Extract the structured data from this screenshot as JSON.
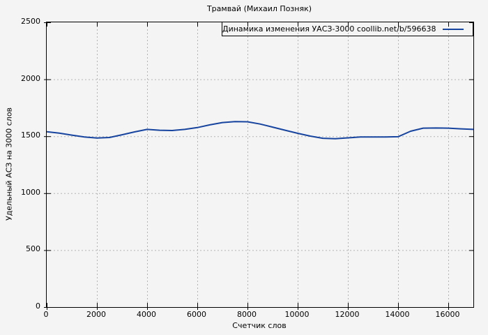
{
  "title": "Трамвай (Михаил Позняк)",
  "colors": {
    "background": "#f4f4f4",
    "line": "#17449e",
    "grid": "#b3b3b3",
    "border": "#000000",
    "text": "#000000"
  },
  "chart_data": {
    "type": "line",
    "title": "Трамвай (Михаил Позняк)",
    "xlabel": "Счетчик слов",
    "ylabel": "Удельный АСЗ на 3000 слов",
    "legend_position": "top-right",
    "grid": true,
    "grid_style": "dashed",
    "xlim": [
      0,
      17000
    ],
    "ylim": [
      0,
      2500
    ],
    "xticks": [
      0,
      2000,
      4000,
      6000,
      8000,
      10000,
      12000,
      14000,
      16000
    ],
    "yticks": [
      0,
      500,
      1000,
      1500,
      2000,
      2500
    ],
    "legend": [
      {
        "name": "Динамика изменения УАСЗ-3000 coollib.net/b/596638",
        "color": "#17449e"
      }
    ],
    "series": [
      {
        "name": "Динамика изменения УАСЗ-3000 coollib.net/b/596638",
        "x": [
          0,
          500,
          1000,
          1500,
          2000,
          2500,
          3000,
          3500,
          4000,
          4500,
          5000,
          5500,
          6000,
          6500,
          7000,
          7500,
          8000,
          8500,
          9000,
          9500,
          10000,
          10500,
          11000,
          11500,
          12000,
          12500,
          13000,
          13500,
          14000,
          14500,
          15000,
          15500,
          16000,
          16500,
          17000
        ],
        "y": [
          1540,
          1527,
          1510,
          1494,
          1484,
          1489,
          1513,
          1538,
          1560,
          1553,
          1550,
          1560,
          1576,
          1600,
          1620,
          1628,
          1627,
          1607,
          1580,
          1553,
          1526,
          1501,
          1482,
          1478,
          1486,
          1493,
          1493,
          1493,
          1496,
          1544,
          1571,
          1572,
          1571,
          1565,
          1560
        ]
      }
    ]
  }
}
